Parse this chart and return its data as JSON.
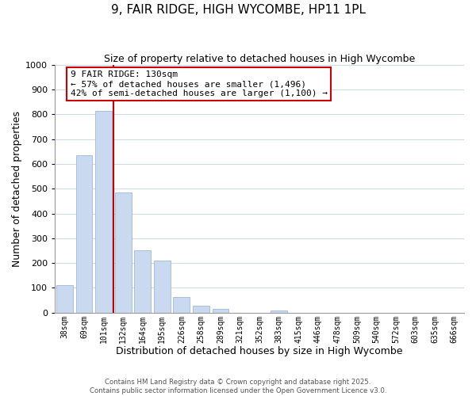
{
  "title": "9, FAIR RIDGE, HIGH WYCOMBE, HP11 1PL",
  "subtitle": "Size of property relative to detached houses in High Wycombe",
  "xlabel": "Distribution of detached houses by size in High Wycombe",
  "ylabel": "Number of detached properties",
  "categories": [
    "38sqm",
    "69sqm",
    "101sqm",
    "132sqm",
    "164sqm",
    "195sqm",
    "226sqm",
    "258sqm",
    "289sqm",
    "321sqm",
    "352sqm",
    "383sqm",
    "415sqm",
    "446sqm",
    "478sqm",
    "509sqm",
    "540sqm",
    "572sqm",
    "603sqm",
    "635sqm",
    "666sqm"
  ],
  "values": [
    110,
    635,
    815,
    485,
    253,
    210,
    62,
    28,
    14,
    0,
    0,
    8,
    0,
    0,
    0,
    0,
    0,
    0,
    0,
    0,
    0
  ],
  "bar_color": "#c9d9f0",
  "bar_edge_color": "#a0b8d8",
  "vline_color": "#cc0000",
  "vline_x": 2.5,
  "annotation_text_line1": "9 FAIR RIDGE: 130sqm",
  "annotation_text_line2": "← 57% of detached houses are smaller (1,496)",
  "annotation_text_line3": "42% of semi-detached houses are larger (1,100) →",
  "ylim": [
    0,
    1000
  ],
  "yticks": [
    0,
    100,
    200,
    300,
    400,
    500,
    600,
    700,
    800,
    900,
    1000
  ],
  "background_color": "#ffffff",
  "grid_color": "#c8d8ea",
  "footer_line1": "Contains HM Land Registry data © Crown copyright and database right 2025.",
  "footer_line2": "Contains public sector information licensed under the Open Government Licence v3.0."
}
